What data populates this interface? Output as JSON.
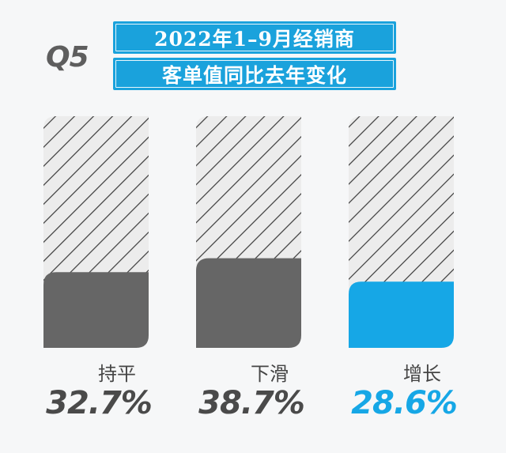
{
  "header": {
    "q_label": "Q5",
    "title_line1": "2022年1–9月经销商",
    "title_line2": "客单值同比去年变化"
  },
  "colors": {
    "accent": "#1aa2dc",
    "bar_gray": "#666666",
    "bar_blue": "#16a7e6",
    "hatch": "#3a3a3a",
    "label_dark": "#4a4a4a"
  },
  "chart_data": {
    "type": "bar",
    "categories": [
      "持平",
      "下滑",
      "增长"
    ],
    "values": [
      32.7,
      38.7,
      28.6
    ],
    "value_labels": [
      "32.7%",
      "38.7%",
      "28.6%"
    ],
    "unit": "%",
    "ylim": [
      0,
      100
    ],
    "highlight_index": 2,
    "grid": false,
    "legend": "none"
  }
}
